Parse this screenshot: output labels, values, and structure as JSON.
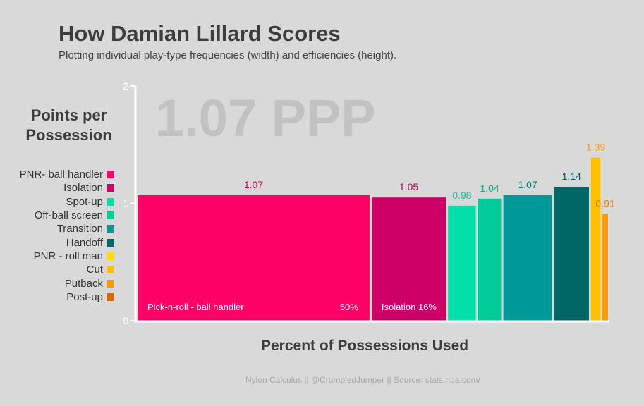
{
  "header": {
    "title": "How Damian Lillard Scores",
    "subtitle": "Plotting individual play-type frequencies (width) and efficiencies (height)."
  },
  "big_annotation": "1.07 PPP",
  "footer": {
    "source": "Nylon Calculus || @CrumpledJumper  || Source: stats.nba.com/"
  },
  "chart_data": {
    "type": "bar",
    "title": "How Damian Lillard Scores",
    "subtitle": "Plotting individual play-type frequencies (width) and efficiencies (height).",
    "xlabel": "Percent of Possessions Used",
    "ylabel": "Points per Possession",
    "ylim": [
      0,
      2
    ],
    "yticks": [
      "0",
      "1",
      "2"
    ],
    "grid": false,
    "legend_placement": "left",
    "series": [
      {
        "name": "PNR- ball handler",
        "ppp": 1.07,
        "ppp_label": "1.07",
        "share": 50,
        "color": "#ff0066",
        "label_color": "#d40058",
        "bar_label": "Pick-n-roll - ball handler",
        "share_label": "50%"
      },
      {
        "name": "Isolation",
        "ppp": 1.05,
        "ppp_label": "1.05",
        "share": 16,
        "color": "#cc0066",
        "label_color": "#c7005e",
        "bar_label": "Isolation 16%",
        "share_label": ""
      },
      {
        "name": "Spot-up",
        "ppp": 0.98,
        "ppp_label": "0.98",
        "share": 6,
        "color": "#00e0a8",
        "label_color": "#00c896",
        "bar_label": "",
        "share_label": ""
      },
      {
        "name": "Off-ball screen",
        "ppp": 1.04,
        "ppp_label": "1.04",
        "share": 5,
        "color": "#00cc99",
        "label_color": "#00b386",
        "bar_label": "",
        "share_label": ""
      },
      {
        "name": "Transition",
        "ppp": 1.07,
        "ppp_label": "1.07",
        "share": 10.5,
        "color": "#009999",
        "label_color": "#007a7a",
        "bar_label": "",
        "share_label": ""
      },
      {
        "name": "Handoff",
        "ppp": 1.14,
        "ppp_label": "1.14",
        "share": 7.5,
        "color": "#006666",
        "label_color": "#005555",
        "bar_label": "",
        "share_label": ""
      },
      {
        "name": "PNR - roll man",
        "ppp": 0,
        "ppp_label": "",
        "share": 0,
        "color": "#ffdd00",
        "label_color": "#ccaa00",
        "bar_label": "",
        "share_label": ""
      },
      {
        "name": "Cut",
        "ppp": 1.39,
        "ppp_label": "1.39",
        "share": 2,
        "color": "#ffc000",
        "label_color": "#f0a020",
        "bar_label": "",
        "share_label": ""
      },
      {
        "name": "Putback",
        "ppp": 0.91,
        "ppp_label": "0.91",
        "share": 1.2,
        "color": "#ff9900",
        "label_color": "#e07b00",
        "bar_label": "",
        "share_label": ""
      },
      {
        "name": "Post-up",
        "ppp": 0,
        "ppp_label": "",
        "share": 0,
        "color": "#d46a0c",
        "label_color": "#c05c00",
        "bar_label": "",
        "share_label": ""
      }
    ]
  }
}
